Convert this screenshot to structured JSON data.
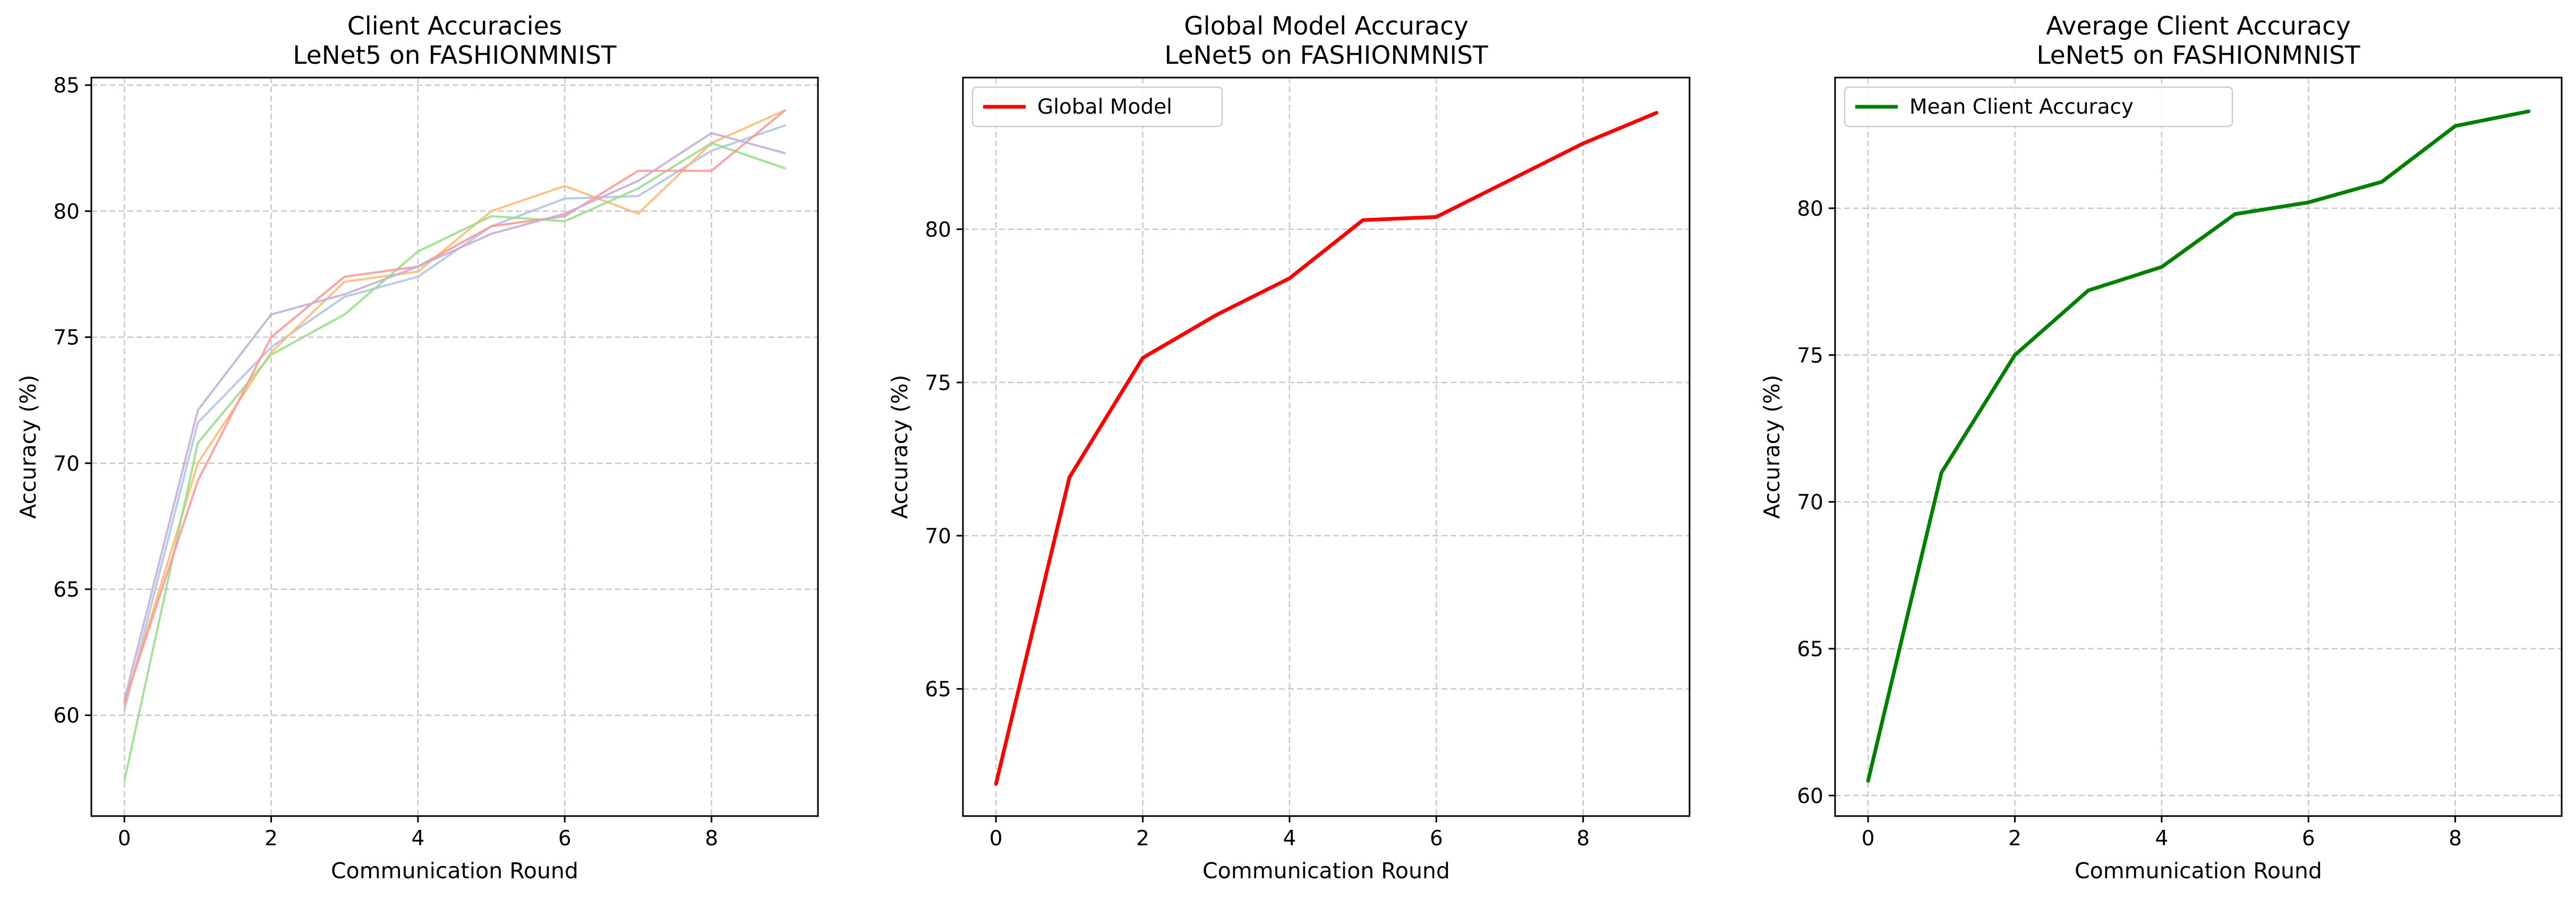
{
  "chart_data": [
    {
      "type": "line",
      "title": "Client Accuracies",
      "subtitle": "LeNet5 on FASHIONMNIST",
      "xlabel": "Communication Round",
      "ylabel": "Accuracy (%)",
      "xlim": [
        -0.45,
        9.45
      ],
      "ylim": [
        56.0,
        85.3
      ],
      "xticks": [
        0,
        2,
        4,
        6,
        8
      ],
      "yticks": [
        60,
        65,
        70,
        75,
        80,
        85
      ],
      "grid": true,
      "legend": null,
      "line_width": 4,
      "x": [
        0,
        1,
        2,
        3,
        4,
        5,
        6,
        7,
        8,
        9
      ],
      "series": [
        {
          "color": "#aec7e8",
          "values": [
            60.2,
            71.6,
            74.6,
            76.6,
            77.4,
            79.4,
            80.5,
            80.6,
            82.4,
            83.4
          ]
        },
        {
          "color": "#ffbb78",
          "values": [
            60.4,
            70.0,
            74.4,
            77.2,
            77.6,
            80.0,
            81.0,
            79.9,
            82.7,
            84.0
          ]
        },
        {
          "color": "#98df8a",
          "values": [
            57.4,
            70.8,
            74.3,
            75.9,
            78.4,
            79.8,
            79.6,
            80.9,
            82.7,
            81.7
          ]
        },
        {
          "color": "#ff9896",
          "values": [
            60.5,
            69.3,
            75.0,
            77.4,
            77.8,
            79.4,
            79.8,
            81.6,
            81.6,
            84.0
          ]
        },
        {
          "color": "#c5b0d5",
          "values": [
            60.6,
            72.1,
            75.9,
            76.7,
            77.8,
            79.1,
            79.9,
            81.2,
            83.1,
            82.3
          ]
        }
      ]
    },
    {
      "type": "line",
      "title": "Global Model Accuracy",
      "subtitle": "LeNet5 on FASHIONMNIST",
      "xlabel": "Communication Round",
      "ylabel": "Accuracy (%)",
      "xlim": [
        -0.45,
        9.45
      ],
      "ylim": [
        60.85,
        84.95
      ],
      "xticks": [
        0,
        2,
        4,
        6,
        8
      ],
      "yticks": [
        65,
        70,
        75,
        80
      ],
      "grid": true,
      "legend": "top-left",
      "line_width": 7,
      "x": [
        0,
        1,
        2,
        3,
        4,
        5,
        6,
        7,
        8,
        9
      ],
      "series": [
        {
          "name": "Global Model",
          "color": "#ff0000",
          "values": [
            61.9,
            71.9,
            75.8,
            77.2,
            78.4,
            80.3,
            80.4,
            81.6,
            82.8,
            83.8
          ]
        }
      ]
    },
    {
      "type": "line",
      "title": "Average Client Accuracy",
      "subtitle": "LeNet5 on FASHIONMNIST",
      "xlabel": "Communication Round",
      "ylabel": "Accuracy (%)",
      "xlim": [
        -0.45,
        9.45
      ],
      "ylim": [
        59.3,
        84.45
      ],
      "xticks": [
        0,
        2,
        4,
        6,
        8
      ],
      "yticks": [
        60,
        65,
        70,
        75,
        80
      ],
      "grid": true,
      "legend": "top-left",
      "line_width": 7,
      "x": [
        0,
        1,
        2,
        3,
        4,
        5,
        6,
        7,
        8,
        9
      ],
      "series": [
        {
          "name": "Mean Client Accuracy",
          "color": "#008000",
          "values": [
            60.5,
            71.0,
            75.0,
            77.2,
            78.0,
            79.8,
            80.2,
            80.9,
            82.8,
            83.3
          ]
        }
      ]
    }
  ]
}
